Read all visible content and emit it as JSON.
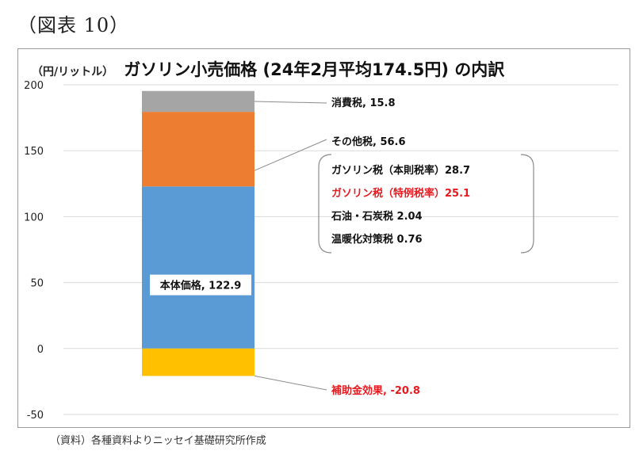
{
  "figure_label": "（図表 10）",
  "unit_label": "（円/リットル）",
  "title": "ガソリン小売価格 (24年2月平均174.5円) の内訳",
  "source": "（資料）各種資料よりニッセイ基礎研究所作成",
  "colors": {
    "body": "#5b9bd5",
    "other_tax": "#ed7d31",
    "consumption_tax": "#a5a5a5",
    "subsidy": "#ffc000",
    "grid": "#d9d9d9",
    "red_text": "#e8191f"
  },
  "chart_data": {
    "type": "bar",
    "stacked": true,
    "categories": [
      ""
    ],
    "series": [
      {
        "name": "本体価格",
        "values": [
          122.9
        ]
      },
      {
        "name": "その他税",
        "values": [
          56.6
        ]
      },
      {
        "name": "消費税",
        "values": [
          15.8
        ]
      },
      {
        "name": "補助金効果",
        "values": [
          -20.8
        ]
      }
    ],
    "ylim": [
      -50,
      200
    ],
    "yticks": [
      -50,
      0,
      50,
      100,
      150,
      200
    ],
    "grid": true,
    "labels": {
      "body": "本体価格, 122.9",
      "consumption_tax": "消費税, 15.8",
      "other_tax": "その他税, 56.6",
      "subsidy": "補助金効果, -20.8"
    },
    "breakdown": [
      {
        "label": "ガソリン税（本則税率）28.7",
        "highlight": false
      },
      {
        "label": "ガソリン税（特例税率）25.1",
        "highlight": true
      },
      {
        "label": "石油・石炭税 2.04",
        "highlight": false
      },
      {
        "label": "温暖化対策税 0.76",
        "highlight": false
      }
    ]
  }
}
